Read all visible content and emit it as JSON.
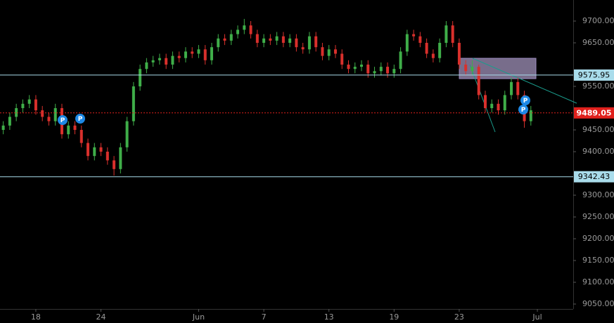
{
  "chart_data": {
    "type": "candlestick",
    "categories": [
      null,
      null,
      null,
      null,
      null,
      "18",
      null,
      null,
      null,
      null,
      null,
      null,
      null,
      null,
      null,
      "24",
      null,
      null,
      null,
      null,
      null,
      null,
      null,
      null,
      null,
      null,
      null,
      null,
      null,
      null,
      "Jun",
      null,
      null,
      null,
      null,
      null,
      null,
      null,
      null,
      null,
      "7",
      null,
      null,
      null,
      null,
      null,
      null,
      null,
      null,
      null,
      "13",
      null,
      null,
      null,
      null,
      null,
      null,
      null,
      null,
      null,
      "19",
      null,
      null,
      null,
      null,
      null,
      null,
      null,
      null,
      null,
      "23",
      null,
      null,
      null,
      null,
      null,
      null,
      null,
      null,
      null,
      null,
      null,
      "Jul",
      null,
      null,
      null,
      null,
      null
    ],
    "open": [
      9450,
      9460,
      9480,
      9500,
      9510,
      9520,
      9495,
      9480,
      9470,
      9500,
      9440,
      9460,
      9450,
      9420,
      9390,
      9410,
      9400,
      9380,
      9360,
      9410,
      9470,
      9550,
      9590,
      9605,
      9610,
      9615,
      9600,
      9620,
      9615,
      9630,
      9625,
      9635,
      9610,
      9640,
      9660,
      9655,
      9670,
      9680,
      9690,
      9670,
      9650,
      9660,
      9655,
      9665,
      9650,
      9660,
      9640,
      9635,
      9665,
      9640,
      9620,
      9635,
      9625,
      9600,
      9590,
      9595,
      9600,
      9580,
      9585,
      9595,
      9580,
      9590,
      9630,
      9670,
      9665,
      9650,
      9625,
      9615,
      9650,
      9690,
      9650,
      9600,
      9585,
      9595,
      9530,
      9500,
      9510,
      9495,
      9530,
      9560,
      9530,
      9470,
      null,
      null,
      null,
      null,
      null,
      null
    ],
    "high": [
      9470,
      9490,
      9510,
      9520,
      9530,
      9530,
      9505,
      9490,
      9510,
      9510,
      9470,
      9470,
      9460,
      9430,
      9420,
      9420,
      9410,
      9390,
      9420,
      9480,
      9560,
      9600,
      9615,
      9620,
      9625,
      9625,
      9630,
      9630,
      9640,
      9640,
      9645,
      9645,
      9650,
      9670,
      9670,
      9680,
      9690,
      9705,
      9700,
      9680,
      9670,
      9670,
      9675,
      9675,
      9670,
      9670,
      9650,
      9675,
      9675,
      9650,
      9645,
      9645,
      9635,
      9610,
      9605,
      9610,
      9610,
      9595,
      9605,
      9605,
      9600,
      9640,
      9680,
      9680,
      9675,
      9660,
      9635,
      9660,
      9700,
      9700,
      9660,
      9610,
      9610,
      9600,
      9540,
      9520,
      9520,
      9540,
      9570,
      9570,
      9540,
      9505,
      null,
      null,
      null,
      null,
      null,
      null
    ],
    "low": [
      9440,
      9450,
      9470,
      9490,
      9500,
      9485,
      9470,
      9460,
      9460,
      9430,
      9430,
      9440,
      9410,
      9380,
      9380,
      9390,
      9370,
      9345,
      9350,
      9400,
      9460,
      9540,
      9580,
      9595,
      9600,
      9590,
      9590,
      9605,
      9605,
      9615,
      9615,
      9600,
      9600,
      9630,
      9645,
      9645,
      9660,
      9670,
      9660,
      9640,
      9640,
      9645,
      9645,
      9640,
      9640,
      9630,
      9625,
      9625,
      9630,
      9610,
      9610,
      9615,
      9590,
      9580,
      9580,
      9585,
      9570,
      9570,
      9575,
      9570,
      9570,
      9580,
      9620,
      9655,
      9640,
      9615,
      9605,
      9605,
      9640,
      9640,
      9590,
      9575,
      9575,
      9520,
      9490,
      9490,
      9485,
      9485,
      9520,
      9520,
      9455,
      9460,
      null,
      null,
      null,
      null,
      null,
      null
    ],
    "close": [
      9460,
      9480,
      9500,
      9510,
      9520,
      9495,
      9480,
      9470,
      9500,
      9440,
      9460,
      9450,
      9420,
      9390,
      9410,
      9400,
      9380,
      9360,
      9410,
      9470,
      9550,
      9590,
      9605,
      9610,
      9615,
      9600,
      9620,
      9615,
      9630,
      9625,
      9635,
      9610,
      9640,
      9660,
      9655,
      9670,
      9680,
      9690,
      9670,
      9650,
      9660,
      9655,
      9665,
      9650,
      9660,
      9640,
      9635,
      9665,
      9640,
      9620,
      9635,
      9625,
      9600,
      9590,
      9595,
      9600,
      9580,
      9585,
      9595,
      9580,
      9590,
      9630,
      9670,
      9665,
      9650,
      9625,
      9615,
      9650,
      9690,
      9650,
      9600,
      9585,
      9595,
      9530,
      9500,
      9510,
      9495,
      9530,
      9560,
      9530,
      9470,
      9495,
      null,
      null,
      null,
      null,
      null,
      null
    ],
    "up_color": "#3fae49",
    "down_color": "#d9302c",
    "ylim": [
      9038.7,
      9748.4
    ],
    "yticks": [
      {
        "value": 9700,
        "label": "9700.00"
      },
      {
        "value": 9650,
        "label": "9650.00"
      },
      {
        "value": 9550,
        "label": "9550.00"
      },
      {
        "value": 9450,
        "label": "9450.00"
      },
      {
        "value": 9400,
        "label": "9400.00"
      },
      {
        "value": 9300,
        "label": "9300.00"
      },
      {
        "value": 9250,
        "label": "9250.00"
      },
      {
        "value": 9200,
        "label": "9200.00"
      },
      {
        "value": 9150,
        "label": "9150.00"
      },
      {
        "value": 9100,
        "label": "9100.00"
      },
      {
        "value": 9050,
        "label": "9050.00"
      }
    ],
    "price_lines": [
      {
        "value": 9575.95,
        "color": "#a9dceb",
        "dashed": false
      },
      {
        "value": 9489.05,
        "color": "#e0201c",
        "dashed": true
      },
      {
        "value": 9342.43,
        "color": "#a9dceb",
        "dashed": false
      }
    ],
    "annotations": [
      "P",
      "P",
      "P",
      "P"
    ]
  }
}
